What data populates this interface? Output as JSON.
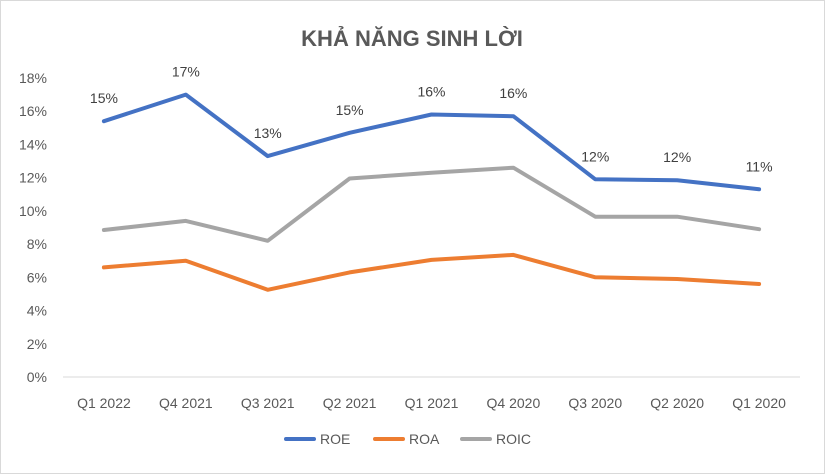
{
  "chart_data": {
    "type": "line",
    "title": "KHẢ NĂNG SINH LỜI",
    "categories": [
      "Q1 2022",
      "Q4 2021",
      "Q3 2021",
      "Q2 2021",
      "Q1 2021",
      "Q4 2020",
      "Q3 2020",
      "Q2 2020",
      "Q1 2020"
    ],
    "y_ticks": [
      "0%",
      "2%",
      "4%",
      "6%",
      "8%",
      "10%",
      "12%",
      "14%",
      "16%",
      "18%"
    ],
    "ylim": [
      0,
      18
    ],
    "grid": false,
    "legend_position": "bottom",
    "series": [
      {
        "name": "ROE",
        "color": "#4472c4",
        "values": [
          15.4,
          17.0,
          13.3,
          14.7,
          15.8,
          15.7,
          11.9,
          11.85,
          11.3
        ],
        "labels": [
          "15%",
          "17%",
          "13%",
          "15%",
          "16%",
          "16%",
          "12%",
          "12%",
          "11%"
        ]
      },
      {
        "name": "ROA",
        "color": "#ed7d31",
        "values": [
          6.6,
          7.0,
          5.25,
          6.3,
          7.05,
          7.35,
          6.0,
          5.9,
          5.6
        ]
      },
      {
        "name": "ROIC",
        "color": "#a5a5a5",
        "values": [
          8.85,
          9.4,
          8.2,
          11.95,
          12.3,
          12.6,
          9.65,
          9.65,
          8.9
        ]
      }
    ]
  }
}
